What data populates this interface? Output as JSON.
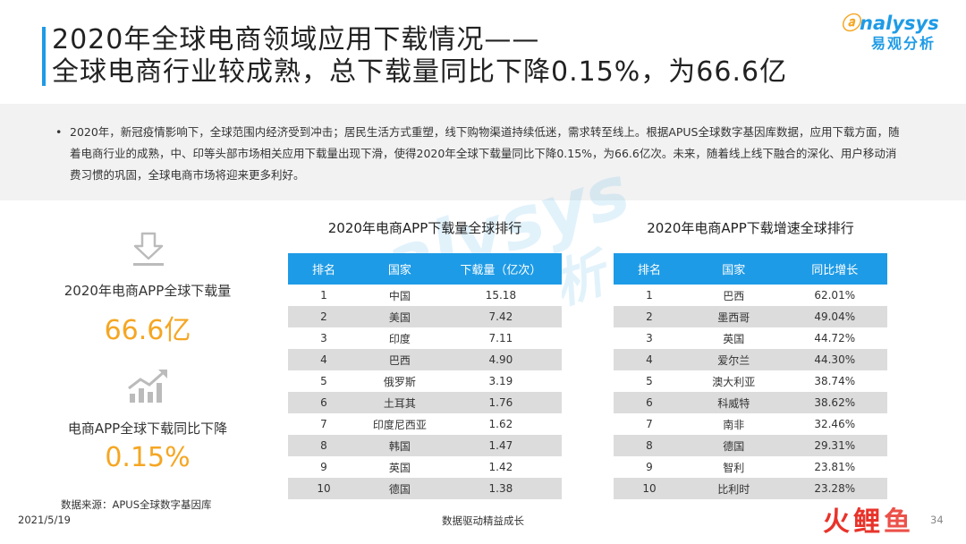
{
  "title": {
    "line1": "2020年全球电商领域应用下载情况——",
    "line2": "全球电商行业较成熟，总下载量同比下降0.15%，为66.6亿"
  },
  "logo": {
    "text_top": "nalysys",
    "text_bottom": "易观分析"
  },
  "description": {
    "bullet": "•",
    "text": "2020年，新冠疫情影响下，全球范围内经济受到冲击；居民生活方式重塑，线下购物渠道持续低迷，需求转至线上。根据APUS全球数字基因库数据，应用下载方面，随着电商行业的成熟，中、印等头部市场相关应用下载量出现下滑，使得2020年全球下载量同比下降0.15%，为66.6亿次。未来，随着线上线下融合的深化、用户移动消费习惯的巩固，全球电商市场将迎来更多利好。"
  },
  "stats": [
    {
      "icon": "download-icon",
      "label": "2020年电商APP全球下载量",
      "value": "66.6亿"
    },
    {
      "icon": "growth-chart-icon",
      "label": "电商APP全球下载同比下降",
      "value": "0.15%"
    }
  ],
  "source": "数据来源：APUS全球数字基因库",
  "downloads_table": {
    "title": "2020年电商APP下载量全球排行",
    "headers": [
      "排名",
      "国家",
      "下载量（亿次）"
    ],
    "rows": [
      [
        "1",
        "中国",
        "15.18"
      ],
      [
        "2",
        "美国",
        "7.42"
      ],
      [
        "3",
        "印度",
        "7.11"
      ],
      [
        "4",
        "巴西",
        "4.90"
      ],
      [
        "5",
        "俄罗斯",
        "3.19"
      ],
      [
        "6",
        "土耳其",
        "1.76"
      ],
      [
        "7",
        "印度尼西亚",
        "1.62"
      ],
      [
        "8",
        "韩国",
        "1.47"
      ],
      [
        "9",
        "英国",
        "1.42"
      ],
      [
        "10",
        "德国",
        "1.38"
      ]
    ]
  },
  "growth_table": {
    "title": "2020年电商APP下载增速全球排行",
    "headers": [
      "排名",
      "国家",
      "同比增长"
    ],
    "rows": [
      [
        "1",
        "巴西",
        "62.01%"
      ],
      [
        "2",
        "墨西哥",
        "49.04%"
      ],
      [
        "3",
        "英国",
        "44.72%"
      ],
      [
        "4",
        "爱尔兰",
        "44.30%"
      ],
      [
        "5",
        "澳大利亚",
        "38.74%"
      ],
      [
        "6",
        "科威特",
        "38.62%"
      ],
      [
        "7",
        "南非",
        "32.46%"
      ],
      [
        "8",
        "德国",
        "29.31%"
      ],
      [
        "9",
        "智利",
        "23.81%"
      ],
      [
        "10",
        "比利时",
        "23.28%"
      ]
    ]
  },
  "footer": {
    "date": "2021/5/19",
    "slogan": "数据驱动精益成长",
    "page": "34",
    "corner_mark": [
      "火",
      "鲤",
      "鱼"
    ]
  },
  "colors": {
    "accent_blue": "#1E9BE6",
    "accent_orange": "#F5A623",
    "stripe_gray": "#DCDCDC"
  }
}
